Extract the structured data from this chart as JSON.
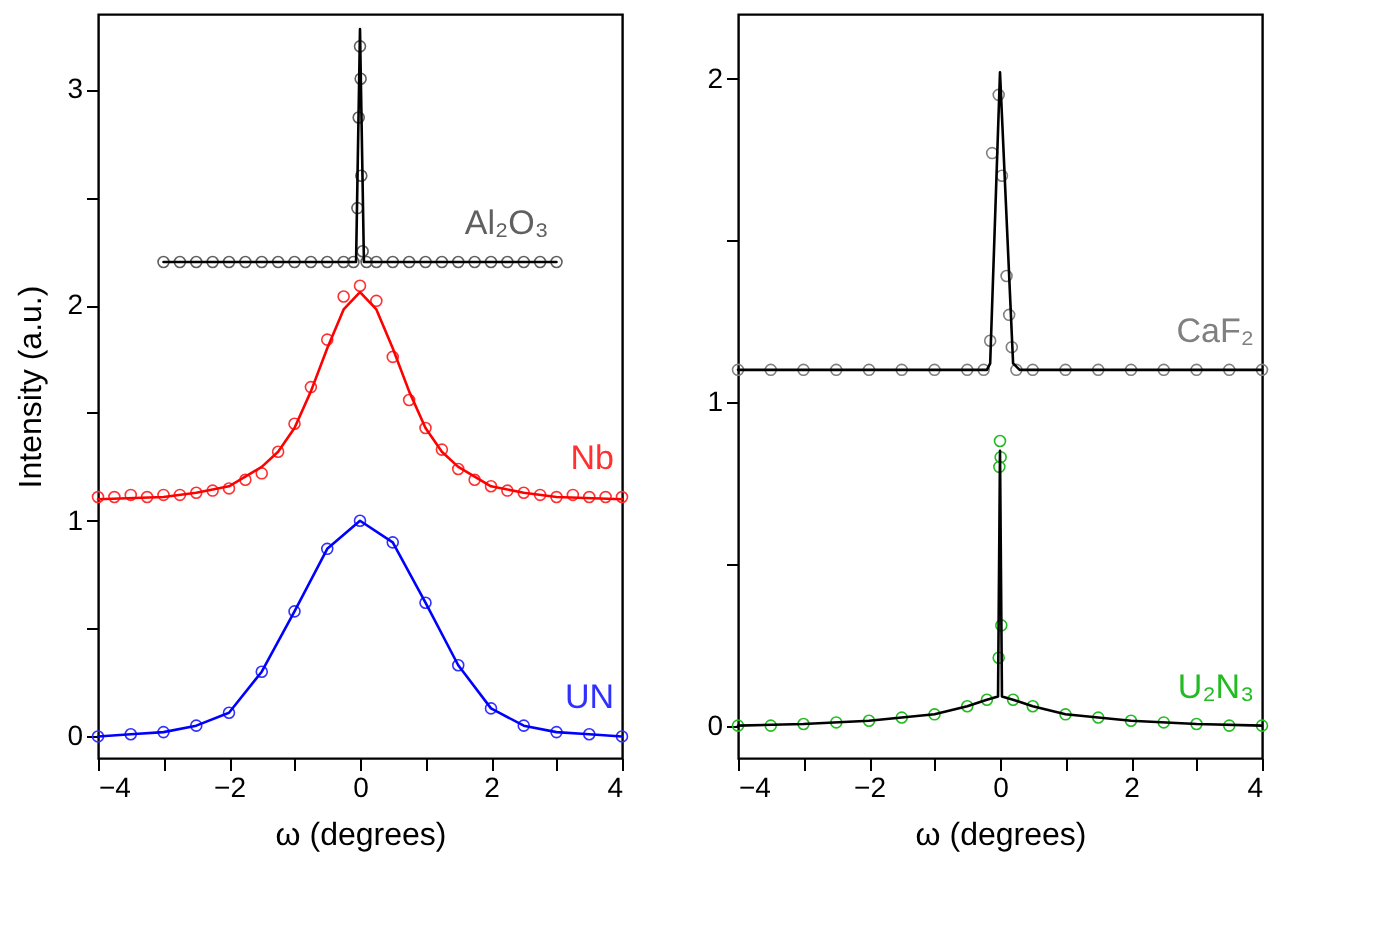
{
  "chart_data": [
    {
      "type": "scatter",
      "xlabel": "ω (degrees)",
      "ylabel": "Intensity (a.u.)",
      "xlim": [
        -4,
        4
      ],
      "ylim": [
        -0.1,
        3.35
      ],
      "xticks": [
        -4,
        {
          "value": -3,
          "label": null
        },
        -2,
        {
          "value": -1,
          "label": null
        },
        0,
        {
          "value": 1,
          "label": null
        },
        2,
        {
          "value": 3,
          "label": null
        },
        4
      ],
      "yticks": [
        0,
        {
          "value": 0.5,
          "label": null
        },
        1,
        {
          "value": 1.5,
          "label": null
        },
        2,
        {
          "value": 2.5,
          "label": null
        },
        3
      ],
      "grid": false,
      "legend": false,
      "marker": "circle",
      "series": [
        {
          "type": "scatter",
          "name": "Al₂O₃",
          "color": "#606060",
          "x": [
            -3,
            -2.75,
            -2.5,
            -2.25,
            -2,
            -1.75,
            -1.5,
            -1.25,
            -1,
            -0.75,
            -0.5,
            -0.25,
            -0.1,
            -0.04,
            -0.02,
            0,
            0.01,
            0.02,
            0.04,
            0.1,
            0.25,
            0.5,
            0.75,
            1,
            1.25,
            1.5,
            1.75,
            2,
            2.25,
            2.5,
            2.75,
            3
          ],
          "values": [
            2.2,
            2.2,
            2.2,
            2.2,
            2.2,
            2.2,
            2.2,
            2.2,
            2.2,
            2.2,
            2.2,
            2.2,
            2.2,
            2.45,
            2.87,
            3.2,
            3.05,
            2.6,
            2.25,
            2.2,
            2.2,
            2.2,
            2.2,
            2.2,
            2.2,
            2.2,
            2.2,
            2.2,
            2.2,
            2.2,
            2.2,
            2.2
          ]
        },
        {
          "type": "line",
          "marker": "none",
          "color": "#000000",
          "x": [
            -3,
            -0.06,
            0,
            0.06,
            3
          ],
          "values": [
            2.2,
            2.2,
            3.28,
            2.2,
            2.2
          ]
        },
        {
          "type": "scatter",
          "name": "Nb",
          "color": "#ff3030",
          "x": [
            -4,
            -3.75,
            -3.5,
            -3.25,
            -3,
            -2.75,
            -2.5,
            -2.25,
            -2,
            -1.75,
            -1.5,
            -1.25,
            -1,
            -0.75,
            -0.5,
            -0.25,
            0,
            0.25,
            0.5,
            0.75,
            1,
            1.25,
            1.5,
            1.75,
            2,
            2.25,
            2.5,
            2.75,
            3,
            3.25,
            3.5,
            3.75,
            4
          ],
          "values": [
            1.11,
            1.11,
            1.12,
            1.11,
            1.12,
            1.12,
            1.13,
            1.14,
            1.15,
            1.19,
            1.22,
            1.32,
            1.45,
            1.62,
            1.84,
            2.04,
            2.09,
            2.02,
            1.76,
            1.56,
            1.43,
            1.33,
            1.24,
            1.19,
            1.16,
            1.14,
            1.13,
            1.12,
            1.11,
            1.12,
            1.11,
            1.11,
            1.11
          ]
        },
        {
          "type": "line",
          "marker": "none",
          "color": "#ff0000",
          "x": [
            -4,
            -3,
            -2.5,
            -2,
            -1.5,
            -1.25,
            -1,
            -0.75,
            -0.5,
            -0.25,
            0,
            0.25,
            0.5,
            0.75,
            1,
            1.25,
            1.5,
            2,
            2.5,
            3,
            4
          ],
          "values": [
            1.1,
            1.11,
            1.13,
            1.16,
            1.25,
            1.32,
            1.43,
            1.6,
            1.8,
            1.98,
            2.06,
            1.98,
            1.8,
            1.6,
            1.43,
            1.32,
            1.25,
            1.16,
            1.13,
            1.11,
            1.1
          ]
        },
        {
          "type": "scatter",
          "name": "UN",
          "color": "#3030ff",
          "x": [
            -4,
            -3.5,
            -3,
            -2.5,
            -2,
            -1.5,
            -1,
            -0.5,
            0,
            0.5,
            1,
            1.5,
            2,
            2.5,
            3,
            3.5,
            4
          ],
          "values": [
            0,
            0.01,
            0.02,
            0.05,
            0.11,
            0.3,
            0.58,
            0.87,
            1,
            0.9,
            0.62,
            0.33,
            0.13,
            0.05,
            0.02,
            0.01,
            0
          ]
        },
        {
          "type": "line",
          "marker": "none",
          "color": "#0000ff",
          "x": [
            -4,
            -3.5,
            -3,
            -2.5,
            -2,
            -1.5,
            -1,
            -0.5,
            0,
            0.5,
            1,
            1.5,
            2,
            2.5,
            3,
            3.5,
            4
          ],
          "values": [
            0,
            0.01,
            0.02,
            0.05,
            0.11,
            0.3,
            0.58,
            0.87,
            1,
            0.9,
            0.62,
            0.33,
            0.13,
            0.05,
            0.02,
            0.01,
            0
          ]
        }
      ]
    },
    {
      "type": "scatter",
      "xlabel": "ω (degrees)",
      "xlim": [
        -4,
        4
      ],
      "ylim": [
        -0.1,
        2.2
      ],
      "xticks": [
        -4,
        {
          "value": -3,
          "label": null
        },
        -2,
        {
          "value": -1,
          "label": null
        },
        0,
        {
          "value": 1,
          "label": null
        },
        2,
        {
          "value": 3,
          "label": null
        },
        4
      ],
      "yticks": [
        0,
        {
          "value": 0.5,
          "label": null
        },
        1,
        {
          "value": 1.5,
          "label": null
        },
        2
      ],
      "grid": false,
      "legend": false,
      "marker": "circle",
      "series": [
        {
          "type": "scatter",
          "name": "CaF₂",
          "color": "#808080",
          "x": [
            -4,
            -3.5,
            -3,
            -2.5,
            -2,
            -1.5,
            -1,
            -0.5,
            -0.25,
            -0.15,
            -0.12,
            -0.02,
            0.03,
            0.1,
            0.14,
            0.18,
            0.25,
            0.5,
            1,
            1.5,
            2,
            2.5,
            3,
            3.5,
            4
          ],
          "values": [
            1.1,
            1.1,
            1.1,
            1.1,
            1.1,
            1.1,
            1.1,
            1.1,
            1.1,
            1.19,
            1.77,
            1.95,
            1.7,
            1.39,
            1.27,
            1.17,
            1.1,
            1.1,
            1.1,
            1.1,
            1.1,
            1.1,
            1.1,
            1.1,
            1.1
          ]
        },
        {
          "type": "line",
          "marker": "none",
          "color": "#000000",
          "x": [
            -4,
            -0.2,
            -0.15,
            0,
            0.2,
            0.3,
            4
          ],
          "values": [
            1.1,
            1.1,
            1.12,
            2.02,
            1.12,
            1.1,
            1.1
          ]
        },
        {
          "type": "scatter",
          "name": "U₂N₃",
          "color": "#22bb22",
          "x": [
            -4,
            -3.5,
            -3,
            -2.5,
            -2,
            -1.5,
            -1,
            -0.5,
            -0.2,
            -0.02,
            -0.01,
            0,
            0.01,
            0.02,
            0.2,
            0.5,
            1,
            1.5,
            2,
            2.5,
            3,
            3.5,
            4
          ],
          "values": [
            0,
            0,
            0.005,
            0.01,
            0.015,
            0.025,
            0.035,
            0.06,
            0.08,
            0.21,
            0.8,
            0.88,
            0.83,
            0.31,
            0.08,
            0.06,
            0.035,
            0.025,
            0.015,
            0.01,
            0.005,
            0,
            0
          ]
        },
        {
          "type": "line",
          "marker": "none",
          "color": "#000000",
          "x": [
            -4,
            -3,
            -2,
            -1,
            -0.5,
            -0.2,
            -0.03,
            0,
            0.03,
            0.2,
            0.5,
            1,
            2,
            3,
            4
          ],
          "values": [
            0,
            0.005,
            0.015,
            0.035,
            0.06,
            0.08,
            0.09,
            0.85,
            0.09,
            0.08,
            0.06,
            0.035,
            0.015,
            0.005,
            0
          ]
        }
      ]
    }
  ]
}
